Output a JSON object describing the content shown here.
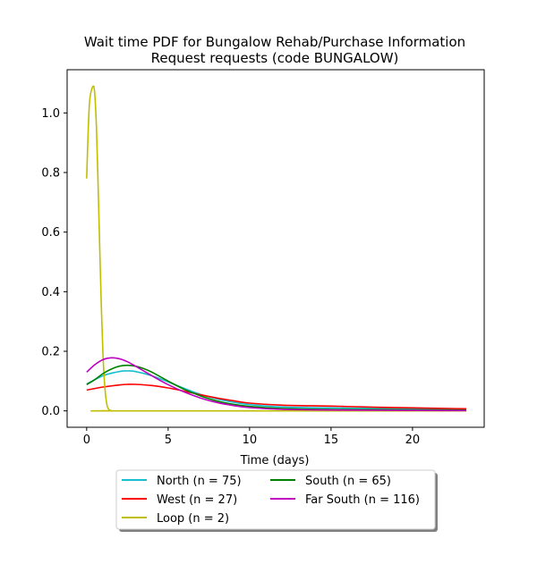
{
  "chart_data": {
    "type": "line",
    "title_line1": "Wait time PDF for Bungalow Rehab/Purchase Information",
    "title_line2": "Request  requests (code BUNGALOW)",
    "xlabel": "Time (days)",
    "ylabel": "",
    "xlim": [
      -1.2,
      24.4
    ],
    "ylim": [
      -0.055,
      1.145
    ],
    "x_ticks": [
      0,
      5,
      10,
      15,
      20
    ],
    "y_ticks": [
      0.0,
      0.2,
      0.4,
      0.6,
      0.8,
      1.0
    ],
    "x_tick_labels": [
      "0",
      "5",
      "10",
      "15",
      "20"
    ],
    "y_tick_labels": [
      "0.0",
      "0.2",
      "0.4",
      "0.6",
      "0.8",
      "1.0"
    ],
    "grid": false,
    "legend_placement": "below plot, two columns, with shadow",
    "series": [
      {
        "name": "North (n = 75)",
        "color": "#17becf",
        "points": [
          [
            0,
            0.09
          ],
          [
            1,
            0.118
          ],
          [
            2,
            0.132
          ],
          [
            2.5,
            0.134
          ],
          [
            3,
            0.132
          ],
          [
            4,
            0.118
          ],
          [
            5,
            0.097
          ],
          [
            6,
            0.075
          ],
          [
            7,
            0.055
          ],
          [
            8,
            0.04
          ],
          [
            9,
            0.029
          ],
          [
            10,
            0.021
          ],
          [
            12,
            0.013
          ],
          [
            15,
            0.01
          ],
          [
            18,
            0.008
          ],
          [
            23.3,
            0.005
          ]
        ]
      },
      {
        "name": "West (n = 27)",
        "color": "#ff0000",
        "points": [
          [
            0,
            0.07
          ],
          [
            1,
            0.08
          ],
          [
            2,
            0.087
          ],
          [
            2.5,
            0.089
          ],
          [
            3,
            0.089
          ],
          [
            4,
            0.085
          ],
          [
            5,
            0.077
          ],
          [
            6,
            0.066
          ],
          [
            7,
            0.054
          ],
          [
            8,
            0.043
          ],
          [
            9,
            0.034
          ],
          [
            10,
            0.026
          ],
          [
            12,
            0.019
          ],
          [
            15,
            0.016
          ],
          [
            18,
            0.012
          ],
          [
            23.3,
            0.007
          ]
        ]
      },
      {
        "name": "Loop (n = 2)",
        "color": "#bfbf00",
        "points": [
          [
            0,
            0.78
          ],
          [
            0.1,
            0.95
          ],
          [
            0.2,
            1.05
          ],
          [
            0.4,
            1.09
          ],
          [
            0.5,
            1.06
          ],
          [
            0.6,
            0.95
          ],
          [
            0.7,
            0.76
          ],
          [
            0.8,
            0.55
          ],
          [
            0.9,
            0.35
          ],
          [
            1.0,
            0.19
          ],
          [
            1.1,
            0.09
          ],
          [
            1.2,
            0.035
          ],
          [
            1.3,
            0.01
          ],
          [
            1.5,
            0.001
          ],
          [
            2,
            0
          ],
          [
            23.3,
            0
          ]
        ]
      },
      {
        "name": "South (n = 65)",
        "color": "#008000",
        "points": [
          [
            0,
            0.088
          ],
          [
            0.5,
            0.105
          ],
          [
            1,
            0.125
          ],
          [
            1.5,
            0.14
          ],
          [
            2,
            0.15
          ],
          [
            2.5,
            0.153
          ],
          [
            3,
            0.15
          ],
          [
            3.5,
            0.142
          ],
          [
            4,
            0.13
          ],
          [
            5,
            0.1
          ],
          [
            6,
            0.072
          ],
          [
            7,
            0.05
          ],
          [
            8,
            0.033
          ],
          [
            9,
            0.022
          ],
          [
            10,
            0.015
          ],
          [
            12,
            0.008
          ],
          [
            15,
            0.005
          ],
          [
            18,
            0.004
          ],
          [
            23.3,
            0.003
          ]
        ]
      },
      {
        "name": "Far South (n = 116)",
        "color": "#bf00bf",
        "points": [
          [
            0,
            0.13
          ],
          [
            0.5,
            0.155
          ],
          [
            1,
            0.172
          ],
          [
            1.5,
            0.178
          ],
          [
            2,
            0.175
          ],
          [
            2.5,
            0.165
          ],
          [
            3,
            0.15
          ],
          [
            4,
            0.118
          ],
          [
            5,
            0.088
          ],
          [
            6,
            0.063
          ],
          [
            7,
            0.043
          ],
          [
            8,
            0.028
          ],
          [
            9,
            0.018
          ],
          [
            10,
            0.011
          ],
          [
            12,
            0.005
          ],
          [
            15,
            0.003
          ],
          [
            18,
            0.002
          ],
          [
            23.3,
            0.001
          ]
        ]
      }
    ]
  }
}
